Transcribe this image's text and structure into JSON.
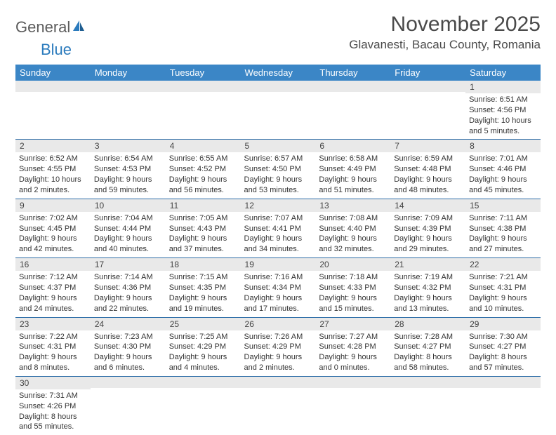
{
  "logo": {
    "word1": "General",
    "word2": "Blue"
  },
  "title": "November 2025",
  "location": "Glavanesti, Bacau County, Romania",
  "colors": {
    "header_bg": "#3b86c6",
    "header_fg": "#ffffff",
    "row_border": "#2f6ea8",
    "daynum_bg": "#e9e9e9",
    "logo_gray": "#5c5c5c",
    "logo_blue": "#2b7bbd",
    "text": "#333333"
  },
  "weekdays": [
    "Sunday",
    "Monday",
    "Tuesday",
    "Wednesday",
    "Thursday",
    "Friday",
    "Saturday"
  ],
  "weeks": [
    [
      null,
      null,
      null,
      null,
      null,
      null,
      {
        "n": "1",
        "sr": "Sunrise: 6:51 AM",
        "ss": "Sunset: 4:56 PM",
        "d1": "Daylight: 10 hours",
        "d2": "and 5 minutes."
      }
    ],
    [
      {
        "n": "2",
        "sr": "Sunrise: 6:52 AM",
        "ss": "Sunset: 4:55 PM",
        "d1": "Daylight: 10 hours",
        "d2": "and 2 minutes."
      },
      {
        "n": "3",
        "sr": "Sunrise: 6:54 AM",
        "ss": "Sunset: 4:53 PM",
        "d1": "Daylight: 9 hours",
        "d2": "and 59 minutes."
      },
      {
        "n": "4",
        "sr": "Sunrise: 6:55 AM",
        "ss": "Sunset: 4:52 PM",
        "d1": "Daylight: 9 hours",
        "d2": "and 56 minutes."
      },
      {
        "n": "5",
        "sr": "Sunrise: 6:57 AM",
        "ss": "Sunset: 4:50 PM",
        "d1": "Daylight: 9 hours",
        "d2": "and 53 minutes."
      },
      {
        "n": "6",
        "sr": "Sunrise: 6:58 AM",
        "ss": "Sunset: 4:49 PM",
        "d1": "Daylight: 9 hours",
        "d2": "and 51 minutes."
      },
      {
        "n": "7",
        "sr": "Sunrise: 6:59 AM",
        "ss": "Sunset: 4:48 PM",
        "d1": "Daylight: 9 hours",
        "d2": "and 48 minutes."
      },
      {
        "n": "8",
        "sr": "Sunrise: 7:01 AM",
        "ss": "Sunset: 4:46 PM",
        "d1": "Daylight: 9 hours",
        "d2": "and 45 minutes."
      }
    ],
    [
      {
        "n": "9",
        "sr": "Sunrise: 7:02 AM",
        "ss": "Sunset: 4:45 PM",
        "d1": "Daylight: 9 hours",
        "d2": "and 42 minutes."
      },
      {
        "n": "10",
        "sr": "Sunrise: 7:04 AM",
        "ss": "Sunset: 4:44 PM",
        "d1": "Daylight: 9 hours",
        "d2": "and 40 minutes."
      },
      {
        "n": "11",
        "sr": "Sunrise: 7:05 AM",
        "ss": "Sunset: 4:43 PM",
        "d1": "Daylight: 9 hours",
        "d2": "and 37 minutes."
      },
      {
        "n": "12",
        "sr": "Sunrise: 7:07 AM",
        "ss": "Sunset: 4:41 PM",
        "d1": "Daylight: 9 hours",
        "d2": "and 34 minutes."
      },
      {
        "n": "13",
        "sr": "Sunrise: 7:08 AM",
        "ss": "Sunset: 4:40 PM",
        "d1": "Daylight: 9 hours",
        "d2": "and 32 minutes."
      },
      {
        "n": "14",
        "sr": "Sunrise: 7:09 AM",
        "ss": "Sunset: 4:39 PM",
        "d1": "Daylight: 9 hours",
        "d2": "and 29 minutes."
      },
      {
        "n": "15",
        "sr": "Sunrise: 7:11 AM",
        "ss": "Sunset: 4:38 PM",
        "d1": "Daylight: 9 hours",
        "d2": "and 27 minutes."
      }
    ],
    [
      {
        "n": "16",
        "sr": "Sunrise: 7:12 AM",
        "ss": "Sunset: 4:37 PM",
        "d1": "Daylight: 9 hours",
        "d2": "and 24 minutes."
      },
      {
        "n": "17",
        "sr": "Sunrise: 7:14 AM",
        "ss": "Sunset: 4:36 PM",
        "d1": "Daylight: 9 hours",
        "d2": "and 22 minutes."
      },
      {
        "n": "18",
        "sr": "Sunrise: 7:15 AM",
        "ss": "Sunset: 4:35 PM",
        "d1": "Daylight: 9 hours",
        "d2": "and 19 minutes."
      },
      {
        "n": "19",
        "sr": "Sunrise: 7:16 AM",
        "ss": "Sunset: 4:34 PM",
        "d1": "Daylight: 9 hours",
        "d2": "and 17 minutes."
      },
      {
        "n": "20",
        "sr": "Sunrise: 7:18 AM",
        "ss": "Sunset: 4:33 PM",
        "d1": "Daylight: 9 hours",
        "d2": "and 15 minutes."
      },
      {
        "n": "21",
        "sr": "Sunrise: 7:19 AM",
        "ss": "Sunset: 4:32 PM",
        "d1": "Daylight: 9 hours",
        "d2": "and 13 minutes."
      },
      {
        "n": "22",
        "sr": "Sunrise: 7:21 AM",
        "ss": "Sunset: 4:31 PM",
        "d1": "Daylight: 9 hours",
        "d2": "and 10 minutes."
      }
    ],
    [
      {
        "n": "23",
        "sr": "Sunrise: 7:22 AM",
        "ss": "Sunset: 4:31 PM",
        "d1": "Daylight: 9 hours",
        "d2": "and 8 minutes."
      },
      {
        "n": "24",
        "sr": "Sunrise: 7:23 AM",
        "ss": "Sunset: 4:30 PM",
        "d1": "Daylight: 9 hours",
        "d2": "and 6 minutes."
      },
      {
        "n": "25",
        "sr": "Sunrise: 7:25 AM",
        "ss": "Sunset: 4:29 PM",
        "d1": "Daylight: 9 hours",
        "d2": "and 4 minutes."
      },
      {
        "n": "26",
        "sr": "Sunrise: 7:26 AM",
        "ss": "Sunset: 4:29 PM",
        "d1": "Daylight: 9 hours",
        "d2": "and 2 minutes."
      },
      {
        "n": "27",
        "sr": "Sunrise: 7:27 AM",
        "ss": "Sunset: 4:28 PM",
        "d1": "Daylight: 9 hours",
        "d2": "and 0 minutes."
      },
      {
        "n": "28",
        "sr": "Sunrise: 7:28 AM",
        "ss": "Sunset: 4:27 PM",
        "d1": "Daylight: 8 hours",
        "d2": "and 58 minutes."
      },
      {
        "n": "29",
        "sr": "Sunrise: 7:30 AM",
        "ss": "Sunset: 4:27 PM",
        "d1": "Daylight: 8 hours",
        "d2": "and 57 minutes."
      }
    ],
    [
      {
        "n": "30",
        "sr": "Sunrise: 7:31 AM",
        "ss": "Sunset: 4:26 PM",
        "d1": "Daylight: 8 hours",
        "d2": "and 55 minutes."
      },
      null,
      null,
      null,
      null,
      null,
      null
    ]
  ]
}
